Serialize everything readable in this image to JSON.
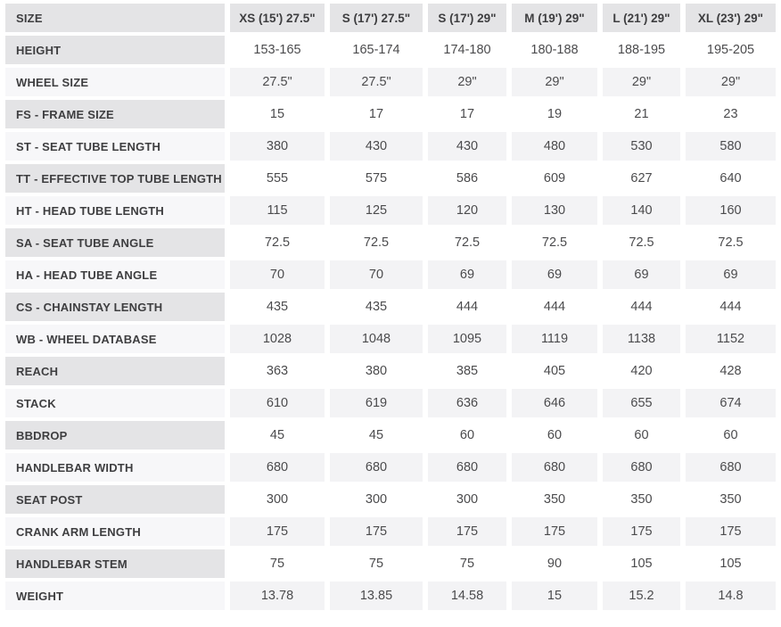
{
  "colors": {
    "header_cell_bg": "#e4e4e6",
    "odd_label_bg": "#e4e4e6",
    "odd_value_bg": "#ffffff",
    "even_label_bg": "#f7f7f9",
    "even_value_bg": "#f3f3f5",
    "label_text": "#3e3e40",
    "value_text": "#4b4b4d",
    "gap": "#ffffff"
  },
  "chart_data": {
    "type": "table",
    "columns": [
      "SIZE",
      "XS (15') 27.5\"",
      "S (17') 27.5\"",
      "S (17') 29\"",
      "M (19') 29\"",
      "L (21') 29\"",
      "XL (23') 29\""
    ],
    "rows": [
      {
        "label": "HEIGHT",
        "values": [
          "153-165",
          "165-174",
          "174-180",
          "180-188",
          "188-195",
          "195-205"
        ]
      },
      {
        "label": "WHEEL SIZE",
        "values": [
          "27.5\"",
          "27.5\"",
          "29\"",
          "29\"",
          "29\"",
          "29\""
        ]
      },
      {
        "label": "FS - FRAME SIZE",
        "values": [
          "15",
          "17",
          "17",
          "19",
          "21",
          "23"
        ]
      },
      {
        "label": "ST - SEAT TUBE LENGTH",
        "values": [
          "380",
          "430",
          "430",
          "480",
          "530",
          "580"
        ]
      },
      {
        "label": "TT - EFFECTIVE TOP TUBE LENGTH",
        "values": [
          "555",
          "575",
          "586",
          "609",
          "627",
          "640"
        ]
      },
      {
        "label": "HT - HEAD TUBE LENGTH",
        "values": [
          "115",
          "125",
          "120",
          "130",
          "140",
          "160"
        ]
      },
      {
        "label": "SA - SEAT TUBE ANGLE",
        "values": [
          "72.5",
          "72.5",
          "72.5",
          "72.5",
          "72.5",
          "72.5"
        ]
      },
      {
        "label": "HA - HEAD TUBE ANGLE",
        "values": [
          "70",
          "70",
          "69",
          "69",
          "69",
          "69"
        ]
      },
      {
        "label": "CS - CHAINSTAY LENGTH",
        "values": [
          "435",
          "435",
          "444",
          "444",
          "444",
          "444"
        ]
      },
      {
        "label": "WB - WHEEL DATABASE",
        "values": [
          "1028",
          "1048",
          "1095",
          "1119",
          "1138",
          "1152"
        ]
      },
      {
        "label": "REACH",
        "values": [
          "363",
          "380",
          "385",
          "405",
          "420",
          "428"
        ]
      },
      {
        "label": "STACK",
        "values": [
          "610",
          "619",
          "636",
          "646",
          "655",
          "674"
        ]
      },
      {
        "label": "BBDROP",
        "values": [
          "45",
          "45",
          "60",
          "60",
          "60",
          "60"
        ]
      },
      {
        "label": "HANDLEBAR WIDTH",
        "values": [
          "680",
          "680",
          "680",
          "680",
          "680",
          "680"
        ]
      },
      {
        "label": "SEAT POST",
        "values": [
          "300",
          "300",
          "300",
          "350",
          "350",
          "350"
        ]
      },
      {
        "label": "CRANK ARM LENGTH",
        "values": [
          "175",
          "175",
          "175",
          "175",
          "175",
          "175"
        ]
      },
      {
        "label": "HANDLEBAR STEM",
        "values": [
          "75",
          "75",
          "75",
          "90",
          "105",
          "105"
        ]
      },
      {
        "label": "WEIGHT",
        "values": [
          "13.78",
          "13.85",
          "14.58",
          "15",
          "15.2",
          "14.8"
        ]
      }
    ],
    "layout": {
      "grid": false,
      "cell_gap_px": "6x4",
      "first_column_align": "left",
      "value_align": "center"
    }
  }
}
